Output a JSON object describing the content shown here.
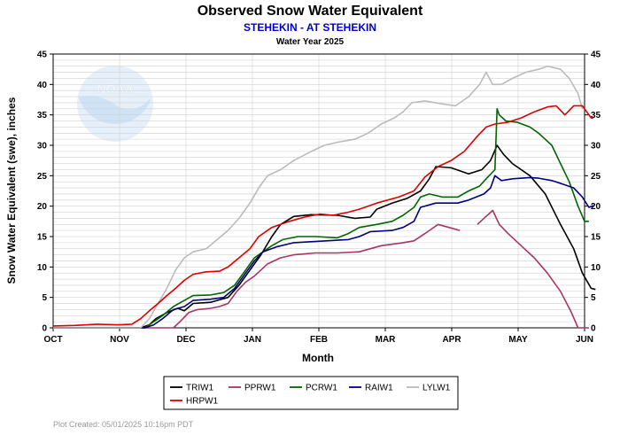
{
  "chart_data": {
    "type": "line",
    "title": "Observed Snow Water Equivalent",
    "subtitle": "STEHEKIN - AT STEHEKIN",
    "subtitle2": "Water Year 2025",
    "xlabel": "Month",
    "ylabel": "Snow Water Equivalent (swe),  inches",
    "x_ticks": [
      "OCT",
      "NOV",
      "DEC",
      "JAN",
      "FEB",
      "MAR",
      "APR",
      "MAY",
      "JUN"
    ],
    "x_unit": "days since Oct 1",
    "xlim": [
      0,
      243
    ],
    "ylim": [
      0,
      45
    ],
    "y_ticks": [
      0,
      5,
      10,
      15,
      20,
      25,
      30,
      35,
      40,
      45
    ],
    "grid": true,
    "legend_position": "bottom",
    "footer": "Plot Created:  05/01/2025 10:16pm PDT",
    "watermark": "NOAA",
    "series": [
      {
        "name": "TRIW1",
        "color": "#000000",
        "points": [
          [
            0,
            0
          ],
          [
            40,
            0
          ],
          [
            44,
            0.5
          ],
          [
            47,
            1.5
          ],
          [
            52,
            2.5
          ],
          [
            57,
            3.2
          ],
          [
            60,
            2.8
          ],
          [
            64,
            4
          ],
          [
            72,
            4.2
          ],
          [
            75,
            4.5
          ],
          [
            80,
            5
          ],
          [
            85,
            7
          ],
          [
            90,
            9.5
          ],
          [
            95,
            12
          ],
          [
            100,
            15
          ],
          [
            104,
            17
          ],
          [
            110,
            18.3
          ],
          [
            118,
            18.6
          ],
          [
            130,
            18.5
          ],
          [
            138,
            18
          ],
          [
            145,
            18.2
          ],
          [
            148,
            19.5
          ],
          [
            155,
            20.5
          ],
          [
            162,
            21.3
          ],
          [
            168,
            22.5
          ],
          [
            172,
            24.5
          ],
          [
            175,
            26.5
          ],
          [
            182,
            26.3
          ],
          [
            190,
            25.3
          ],
          [
            196,
            26
          ],
          [
            200,
            27.5
          ],
          [
            203,
            30
          ],
          [
            206,
            28.5
          ],
          [
            210,
            27
          ],
          [
            218,
            25
          ],
          [
            225,
            22
          ],
          [
            232,
            17
          ],
          [
            238,
            13
          ],
          [
            242,
            9
          ],
          [
            246,
            6.5
          ],
          [
            248,
            6.3
          ]
        ]
      },
      {
        "name": "PPRW1",
        "color": "#aa3366",
        "points": [
          [
            0,
            0
          ],
          [
            55,
            0
          ],
          [
            58,
            1
          ],
          [
            62,
            2.5
          ],
          [
            66,
            3
          ],
          [
            72,
            3.2
          ],
          [
            76,
            3.5
          ],
          [
            80,
            4
          ],
          [
            84,
            6
          ],
          [
            88,
            7.5
          ],
          [
            92,
            8.5
          ],
          [
            98,
            10.5
          ],
          [
            104,
            11.5
          ],
          [
            110,
            12
          ],
          [
            120,
            12.3
          ],
          [
            130,
            12.3
          ],
          [
            140,
            12.5
          ],
          [
            150,
            13.5
          ],
          [
            160,
            14
          ],
          [
            165,
            14.3
          ],
          [
            170,
            15.5
          ],
          [
            176,
            17
          ],
          [
            181,
            16.5
          ],
          [
            186,
            16
          ],
          null,
          [
            194,
            17
          ],
          [
            197,
            18
          ],
          [
            201,
            19.3
          ],
          [
            204,
            17
          ],
          [
            208,
            15.5
          ],
          [
            214,
            13.5
          ],
          [
            220,
            11.5
          ],
          [
            226,
            9
          ],
          [
            232,
            6
          ],
          [
            237,
            2.5
          ],
          [
            240,
            0
          ],
          [
            245,
            0
          ]
        ]
      },
      {
        "name": "PCRW1",
        "color": "#006600",
        "points": [
          [
            0,
            0
          ],
          [
            42,
            0
          ],
          [
            46,
            1
          ],
          [
            50,
            2
          ],
          [
            55,
            3.5
          ],
          [
            60,
            4.5
          ],
          [
            64,
            5.3
          ],
          [
            72,
            5.4
          ],
          [
            78,
            5.8
          ],
          [
            83,
            7
          ],
          [
            88,
            9.5
          ],
          [
            92,
            11.5
          ],
          [
            96,
            12.5
          ],
          [
            100,
            13.5
          ],
          [
            105,
            14.5
          ],
          [
            112,
            15
          ],
          [
            120,
            15
          ],
          [
            130,
            14.8
          ],
          [
            135,
            15.5
          ],
          [
            140,
            16.5
          ],
          [
            148,
            17
          ],
          [
            155,
            17.5
          ],
          [
            160,
            18.5
          ],
          [
            165,
            19.8
          ],
          [
            168,
            21.5
          ],
          [
            172,
            22
          ],
          [
            178,
            21.5
          ],
          [
            185,
            21.5
          ],
          [
            190,
            22.5
          ],
          [
            195,
            23.3
          ],
          [
            198,
            24.5
          ],
          [
            202,
            26
          ],
          [
            203,
            36
          ],
          [
            204,
            35
          ],
          [
            207,
            34
          ],
          [
            212,
            33.8
          ],
          [
            218,
            33
          ],
          [
            222,
            32
          ],
          [
            228,
            30
          ],
          [
            232,
            27
          ],
          [
            236,
            24
          ],
          [
            240,
            20
          ],
          [
            243,
            17.5
          ],
          [
            245,
            17.5
          ]
        ]
      },
      {
        "name": "RAIW1",
        "color": "#000080",
        "points": [
          [
            0,
            0
          ],
          [
            42,
            0
          ],
          [
            46,
            0.5
          ],
          [
            50,
            1.5
          ],
          [
            55,
            3
          ],
          [
            60,
            3.5
          ],
          [
            64,
            4.5
          ],
          [
            72,
            4.7
          ],
          [
            78,
            5
          ],
          [
            83,
            6.5
          ],
          [
            88,
            9
          ],
          [
            92,
            11
          ],
          [
            96,
            12.5
          ],
          [
            102,
            13.3
          ],
          [
            110,
            14
          ],
          [
            125,
            14.3
          ],
          [
            135,
            14.5
          ],
          [
            140,
            15
          ],
          [
            145,
            15.8
          ],
          [
            155,
            16
          ],
          [
            160,
            16.5
          ],
          [
            165,
            17.5
          ],
          [
            168,
            19.8
          ],
          [
            175,
            20.5
          ],
          [
            185,
            20.5
          ],
          [
            190,
            21
          ],
          [
            197,
            22
          ],
          [
            200,
            23
          ],
          [
            202,
            25
          ],
          [
            205,
            24.2
          ],
          [
            210,
            24.5
          ],
          [
            218,
            24.7
          ],
          [
            222,
            24.6
          ],
          [
            228,
            24.2
          ],
          [
            234,
            23.5
          ],
          [
            238,
            23
          ],
          [
            242,
            21.5
          ],
          [
            245,
            19.8
          ],
          [
            247,
            20.1
          ]
        ]
      },
      {
        "name": "LYLW1",
        "color": "#bbbbbb",
        "points": [
          [
            0,
            0
          ],
          [
            40,
            0
          ],
          [
            44,
            1.5
          ],
          [
            48,
            4
          ],
          [
            52,
            6.5
          ],
          [
            56,
            9.5
          ],
          [
            60,
            11.5
          ],
          [
            64,
            12.5
          ],
          [
            70,
            13
          ],
          [
            75,
            14.5
          ],
          [
            80,
            16
          ],
          [
            85,
            18
          ],
          [
            90,
            20.5
          ],
          [
            94,
            23
          ],
          [
            98,
            25
          ],
          [
            104,
            26
          ],
          [
            110,
            27.5
          ],
          [
            118,
            29
          ],
          [
            124,
            30
          ],
          [
            130,
            30.5
          ],
          [
            138,
            31
          ],
          [
            144,
            32
          ],
          [
            150,
            33.5
          ],
          [
            156,
            34.5
          ],
          [
            160,
            35.5
          ],
          [
            164,
            37
          ],
          [
            170,
            37.3
          ],
          [
            178,
            36.8
          ],
          [
            184,
            36.5
          ],
          [
            190,
            38
          ],
          [
            195,
            40
          ],
          [
            198,
            42
          ],
          [
            201,
            40
          ],
          [
            205,
            40
          ],
          [
            210,
            41
          ],
          [
            216,
            42
          ],
          [
            222,
            42.5
          ],
          [
            226,
            43
          ],
          [
            232,
            42.5
          ],
          [
            236,
            41
          ],
          [
            240,
            38.5
          ],
          [
            242,
            36
          ]
        ]
      },
      {
        "name": "HRPW1",
        "color": "#dd0000",
        "points": [
          [
            0,
            0.3
          ],
          [
            10,
            0.4
          ],
          [
            20,
            0.6
          ],
          [
            30,
            0.5
          ],
          [
            36,
            0.6
          ],
          [
            40,
            1.5
          ],
          [
            44,
            2.8
          ],
          [
            48,
            4
          ],
          [
            52,
            5.3
          ],
          [
            56,
            6.5
          ],
          [
            60,
            7.8
          ],
          [
            64,
            8.8
          ],
          [
            70,
            9.2
          ],
          [
            76,
            9.3
          ],
          [
            80,
            10
          ],
          [
            85,
            11.5
          ],
          [
            90,
            13
          ],
          [
            94,
            15
          ],
          [
            100,
            16.5
          ],
          [
            108,
            17.5
          ],
          [
            115,
            18.2
          ],
          [
            122,
            18.7
          ],
          [
            128,
            18.5
          ],
          [
            135,
            19
          ],
          [
            140,
            19.5
          ],
          [
            148,
            20.5
          ],
          [
            158,
            21.5
          ],
          [
            165,
            22.5
          ],
          [
            170,
            24.8
          ],
          [
            176,
            26.5
          ],
          [
            182,
            27.5
          ],
          [
            188,
            29
          ],
          [
            194,
            31.5
          ],
          [
            198,
            33
          ],
          [
            202,
            33.5
          ],
          [
            208,
            33.8
          ],
          [
            214,
            34.5
          ],
          [
            220,
            35.5
          ],
          [
            226,
            36.3
          ],
          [
            230,
            36.5
          ],
          [
            234,
            35
          ],
          [
            238,
            36.5
          ],
          [
            242,
            36.5
          ],
          [
            246,
            34.5
          ],
          [
            247,
            34.5
          ]
        ]
      }
    ]
  }
}
